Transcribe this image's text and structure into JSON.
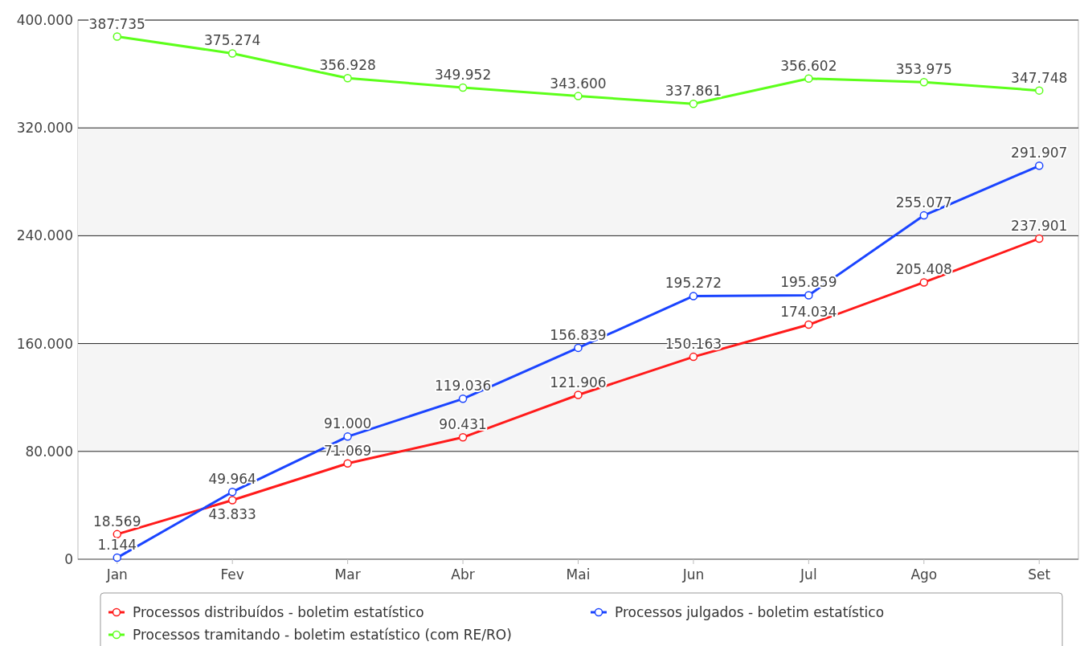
{
  "chart_data": {
    "type": "line",
    "categories": [
      "Jan",
      "Fev",
      "Mar",
      "Abr",
      "Mai",
      "Jun",
      "Jul",
      "Ago",
      "Set"
    ],
    "series": [
      {
        "name": "Processos distribuídos - boletim estatístico",
        "color": "#ff1a1a",
        "values": [
          18569,
          43833,
          71069,
          90431,
          121906,
          150163,
          174034,
          205408,
          237901
        ],
        "value_labels": [
          "18.569",
          "43.833",
          "71.069",
          "90.431",
          "121.906",
          "150.163",
          "174.034",
          "205.408",
          "237.901"
        ]
      },
      {
        "name": "Processos julgados - boletim estatístico",
        "color": "#1a44ff",
        "values": [
          1144,
          49964,
          91000,
          119036,
          156839,
          195272,
          195859,
          255077,
          291907
        ],
        "value_labels": [
          "1.144",
          "49.964",
          "91.000",
          "119.036",
          "156.839",
          "195.272",
          "195.859",
          "255.077",
          "291.907"
        ]
      },
      {
        "name": "Processos tramitando - boletim estatístico (com RE/RO)",
        "color": "#5cff1a",
        "values": [
          387735,
          375274,
          356928,
          349952,
          343600,
          337861,
          356602,
          353975,
          347748
        ],
        "value_labels": [
          "387.735",
          "375.274",
          "356.928",
          "349.952",
          "343.600",
          "337.861",
          "356.602",
          "353.975",
          "347.748"
        ]
      }
    ],
    "ylim": [
      0,
      400000
    ],
    "yticks": [
      {
        "value": 0,
        "label": "0"
      },
      {
        "value": 80000,
        "label": "80.000"
      },
      {
        "value": 160000,
        "label": "160.000"
      },
      {
        "value": 240000,
        "label": "240.000"
      },
      {
        "value": 320000,
        "label": "320.000"
      },
      {
        "value": 400000,
        "label": "400.000"
      }
    ],
    "grid": "y",
    "legend": "bottom",
    "marker": "circle",
    "line_style": "solid"
  }
}
